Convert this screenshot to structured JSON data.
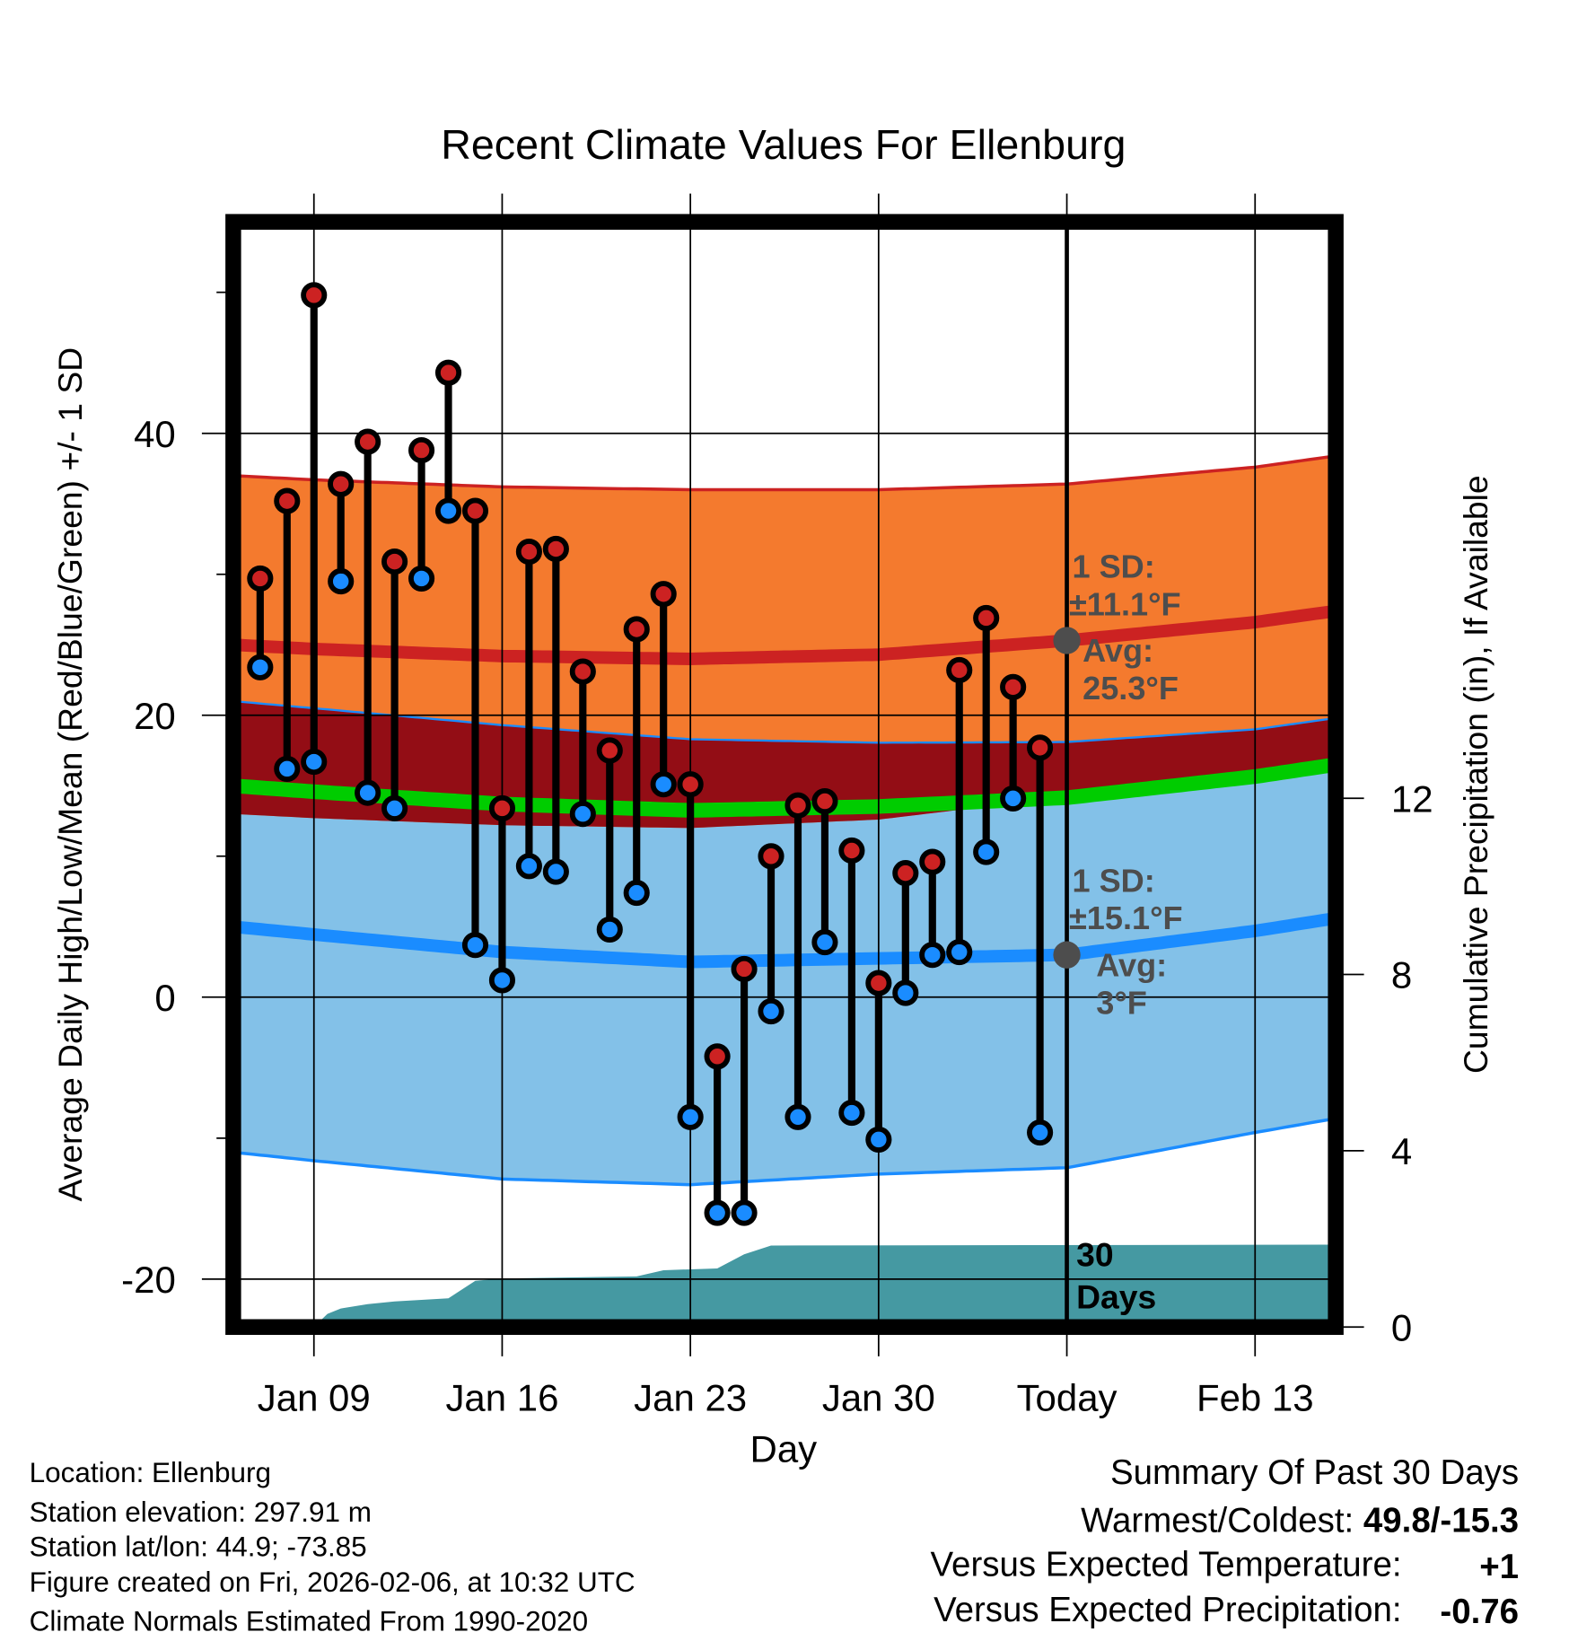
{
  "colors": {
    "high_band": "#f47a2e",
    "high_line": "#cc2222",
    "overlap_band": "#930d15",
    "avg_line": "#00cc00",
    "low_band": "#83c1e8",
    "low_line": "#1a8cff",
    "precip": "#4599a2",
    "marker_today": "#4d4d4d",
    "temp_anomaly": "#d42a2a",
    "precip_anomaly": "#a0522d"
  },
  "chart_data": {
    "type": "line",
    "title": "Recent Climate Values For Ellenburg",
    "xlabel": "Day",
    "ylabel": "Average Daily High/Low/Mean (Red/Blue/Green) +/- 1 SD",
    "y2label": "Cumulative Precipitation (in), If Available",
    "x_units": "day of January 2026 (32 = Feb 1)",
    "xlim": [
      6,
      47
    ],
    "ylim": [
      -23.4,
      55.0
    ],
    "y2lim": [
      0,
      25.08
    ],
    "grid": true,
    "x_ticks": [
      {
        "day": 9,
        "label": "Jan 09"
      },
      {
        "day": 16,
        "label": "Jan 16"
      },
      {
        "day": 23,
        "label": "Jan 23"
      },
      {
        "day": 30,
        "label": "Jan 30"
      },
      {
        "day": 37,
        "label": "Today"
      },
      {
        "day": 44,
        "label": "Feb 13"
      }
    ],
    "y_ticks": [
      {
        "value": 40,
        "label": "40"
      },
      {
        "value": 20,
        "label": "20"
      },
      {
        "value": 0,
        "label": "0"
      },
      {
        "value": -20,
        "label": "-20"
      }
    ],
    "y_minor_ticks": [
      50,
      30,
      10,
      -10
    ],
    "y2_ticks": [
      {
        "value": 12,
        "label": "12"
      },
      {
        "value": 8,
        "label": "8"
      },
      {
        "value": 4,
        "label": "4"
      },
      {
        "value": 0,
        "label": "0"
      }
    ],
    "today_day": 37,
    "observed": {
      "days": [
        7,
        8,
        9,
        10,
        11,
        12,
        13,
        14,
        15,
        16,
        17,
        18,
        19,
        20,
        21,
        22,
        23,
        24,
        25,
        26,
        27,
        28,
        29,
        30,
        31,
        32,
        33,
        34,
        35,
        36
      ],
      "high": [
        29.7,
        35.2,
        49.8,
        36.4,
        39.4,
        30.9,
        38.8,
        44.3,
        34.5,
        13.4,
        31.6,
        31.8,
        23.1,
        17.5,
        26.1,
        28.6,
        15.1,
        -4.2,
        2.0,
        10.0,
        13.6,
        13.9,
        10.4,
        1.0,
        8.8,
        9.6,
        23.2,
        26.9,
        22.0,
        17.7
      ],
      "low": [
        23.4,
        16.2,
        16.7,
        29.5,
        14.5,
        13.4,
        29.7,
        34.5,
        3.7,
        1.2,
        9.3,
        8.9,
        13.0,
        4.8,
        7.4,
        15.1,
        -8.5,
        -15.3,
        -15.3,
        -1.0,
        -8.5,
        3.9,
        -8.2,
        -10.1,
        0.3,
        3.0,
        3.2,
        10.3,
        14.1,
        -9.6
      ]
    },
    "normals": {
      "days": [
        6,
        9,
        16,
        23,
        30,
        37,
        44,
        47
      ],
      "high_mean": [
        25.0,
        24.7,
        24.2,
        24.0,
        24.3,
        25.3,
        26.6,
        27.4
      ],
      "high_sd": [
        12.0,
        12.0,
        12.0,
        12.0,
        11.7,
        11.1,
        11.0,
        11.0
      ],
      "low_mean": [
        5.0,
        4.45,
        3.2,
        2.5,
        2.75,
        3.0,
        4.7,
        5.6
      ],
      "low_sd": [
        16.0,
        16.05,
        16.1,
        15.8,
        15.3,
        15.1,
        14.3,
        14.2
      ]
    },
    "precip_cumulative": {
      "days": [
        9,
        9.5,
        10,
        11,
        12,
        14,
        15,
        16,
        21,
        22,
        24,
        25,
        26,
        47
      ],
      "values": [
        0.0,
        0.3,
        0.42,
        0.52,
        0.58,
        0.65,
        1.05,
        1.1,
        1.15,
        1.29,
        1.33,
        1.65,
        1.85,
        1.87
      ]
    },
    "annotations": {
      "high_sd_label": "1 SD:",
      "high_sd_value": "±11.1°F",
      "high_avg_label": "Avg:",
      "high_avg_value": "25.3°F",
      "high_avg": 25.3,
      "low_sd_label": "1 SD:",
      "low_sd_value": "±15.1°F",
      "low_avg_label": "Avg:",
      "low_avg_value": "3°F",
      "low_avg": 3,
      "precip_days_number": "30",
      "precip_days_word": "Days"
    }
  },
  "footer": {
    "location": "Location: Ellenburg",
    "elevation": "Station elevation: 297.91 m",
    "latlon": "Station lat/lon: 44.9; -73.85",
    "created": "Figure created on Fri, 2026-02-06, at 10:32 UTC",
    "normals": "Climate Normals Estimated From 1990-2020"
  },
  "summary": {
    "heading": "Summary Of Past 30 Days",
    "warmest_coldest_label": "Warmest/Coldest: ",
    "warmest_coldest_value": "49.8/-15.3",
    "temp_label": "Versus Expected Temperature:",
    "temp_value": "+1",
    "precip_label": "Versus Expected Precipitation:",
    "precip_value": "-0.76"
  }
}
